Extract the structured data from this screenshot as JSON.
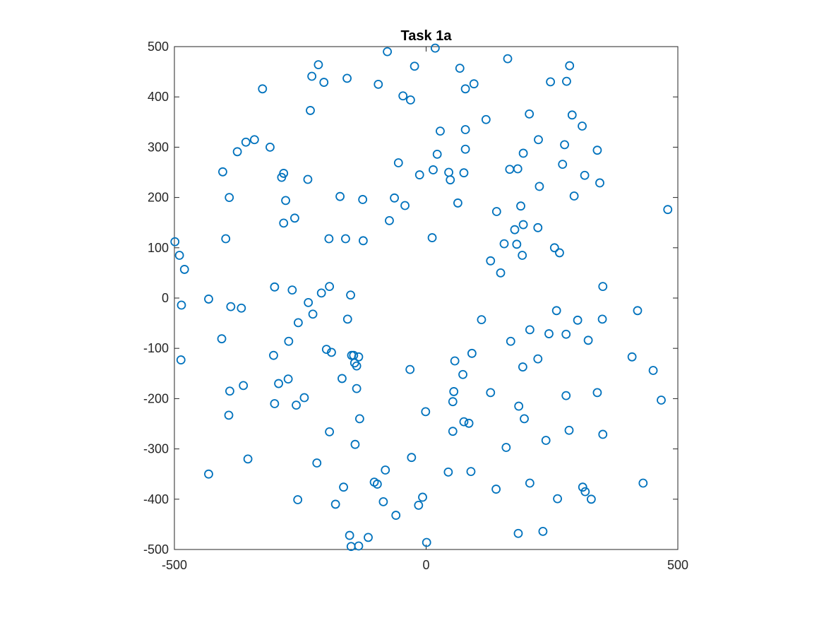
{
  "chart_data": {
    "type": "scatter",
    "title": "Task 1a",
    "xlabel": "",
    "ylabel": "",
    "xlim": [
      -500,
      500
    ],
    "ylim": [
      -500,
      500
    ],
    "xticks": [
      -500,
      0,
      500
    ],
    "yticks": [
      500,
      400,
      300,
      200,
      100,
      0,
      -100,
      -200,
      -300,
      -400,
      -500
    ],
    "grid": false,
    "marker": "circle-open",
    "marker_color": "#0072BD",
    "axis_color": "#262626",
    "points": [
      [
        -77,
        490
      ],
      [
        18,
        497
      ],
      [
        -23,
        461
      ],
      [
        67,
        457
      ],
      [
        162,
        476
      ],
      [
        285,
        462
      ],
      [
        -214,
        464
      ],
      [
        -227,
        441
      ],
      [
        -203,
        429
      ],
      [
        -157,
        437
      ],
      [
        -95,
        425
      ],
      [
        -325,
        416
      ],
      [
        -46,
        402
      ],
      [
        -31,
        394
      ],
      [
        78,
        416
      ],
      [
        95,
        426
      ],
      [
        247,
        430
      ],
      [
        279,
        431
      ],
      [
        -230,
        373
      ],
      [
        119,
        355
      ],
      [
        205,
        366
      ],
      [
        290,
        364
      ],
      [
        310,
        342
      ],
      [
        28,
        332
      ],
      [
        78,
        335
      ],
      [
        -358,
        310
      ],
      [
        -341,
        315
      ],
      [
        -375,
        291
      ],
      [
        -310,
        300
      ],
      [
        22,
        286
      ],
      [
        78,
        296
      ],
      [
        223,
        315
      ],
      [
        275,
        305
      ],
      [
        340,
        294
      ],
      [
        -404,
        251
      ],
      [
        -283,
        248
      ],
      [
        -287,
        240
      ],
      [
        -235,
        236
      ],
      [
        -55,
        269
      ],
      [
        -13,
        245
      ],
      [
        14,
        255
      ],
      [
        45,
        250
      ],
      [
        48,
        235
      ],
      [
        75,
        249
      ],
      [
        166,
        256
      ],
      [
        182,
        257
      ],
      [
        193,
        288
      ],
      [
        271,
        266
      ],
      [
        315,
        244
      ],
      [
        -391,
        200
      ],
      [
        -171,
        202
      ],
      [
        -126,
        196
      ],
      [
        -63,
        199
      ],
      [
        -42,
        184
      ],
      [
        -73,
        154
      ],
      [
        -279,
        194
      ],
      [
        -283,
        149
      ],
      [
        -261,
        159
      ],
      [
        63,
        189
      ],
      [
        225,
        222
      ],
      [
        294,
        203
      ],
      [
        345,
        229
      ],
      [
        480,
        176
      ],
      [
        140,
        172
      ],
      [
        188,
        183
      ],
      [
        193,
        146
      ],
      [
        -499,
        112
      ],
      [
        -490,
        85
      ],
      [
        -480,
        57
      ],
      [
        -398,
        118
      ],
      [
        -193,
        118
      ],
      [
        -160,
        118
      ],
      [
        -125,
        114
      ],
      [
        12,
        120
      ],
      [
        176,
        136
      ],
      [
        222,
        140
      ],
      [
        155,
        108
      ],
      [
        180,
        107
      ],
      [
        191,
        85
      ],
      [
        255,
        100
      ],
      [
        265,
        90
      ],
      [
        128,
        74
      ],
      [
        148,
        50
      ],
      [
        -301,
        22
      ],
      [
        -266,
        16
      ],
      [
        -208,
        10
      ],
      [
        -192,
        23
      ],
      [
        -150,
        6
      ],
      [
        351,
        23
      ],
      [
        -432,
        -2
      ],
      [
        -486,
        -14
      ],
      [
        -388,
        -17
      ],
      [
        -367,
        -20
      ],
      [
        -234,
        -9
      ],
      [
        -225,
        -32
      ],
      [
        -254,
        -49
      ],
      [
        -156,
        -42
      ],
      [
        259,
        -25
      ],
      [
        420,
        -25
      ],
      [
        110,
        -43
      ],
      [
        301,
        -44
      ],
      [
        350,
        -42
      ],
      [
        -406,
        -81
      ],
      [
        -273,
        -86
      ],
      [
        -198,
        -102
      ],
      [
        -188,
        -108
      ],
      [
        -148,
        -114
      ],
      [
        -144,
        -114
      ],
      [
        -134,
        -117
      ],
      [
        -142,
        -129
      ],
      [
        -138,
        -135
      ],
      [
        -303,
        -114
      ],
      [
        -487,
        -123
      ],
      [
        168,
        -86
      ],
      [
        206,
        -63
      ],
      [
        244,
        -71
      ],
      [
        278,
        -72
      ],
      [
        322,
        -84
      ],
      [
        91,
        -110
      ],
      [
        57,
        -125
      ],
      [
        73,
        -152
      ],
      [
        222,
        -121
      ],
      [
        192,
        -137
      ],
      [
        -32,
        -142
      ],
      [
        409,
        -117
      ],
      [
        451,
        -144
      ],
      [
        -167,
        -160
      ],
      [
        -138,
        -180
      ],
      [
        -390,
        -185
      ],
      [
        -363,
        -174
      ],
      [
        -293,
        -170
      ],
      [
        -274,
        -161
      ],
      [
        -242,
        -198
      ],
      [
        -258,
        -213
      ],
      [
        -301,
        -210
      ],
      [
        128,
        -188
      ],
      [
        55,
        -186
      ],
      [
        53,
        -206
      ],
      [
        184,
        -215
      ],
      [
        278,
        -194
      ],
      [
        340,
        -188
      ],
      [
        467,
        -203
      ],
      [
        -392,
        -233
      ],
      [
        -132,
        -240
      ],
      [
        -1,
        -226
      ],
      [
        195,
        -240
      ],
      [
        75,
        -246
      ],
      [
        85,
        -249
      ],
      [
        -192,
        -266
      ],
      [
        53,
        -265
      ],
      [
        -141,
        -291
      ],
      [
        -354,
        -320
      ],
      [
        -217,
        -328
      ],
      [
        -29,
        -317
      ],
      [
        159,
        -297
      ],
      [
        238,
        -283
      ],
      [
        284,
        -263
      ],
      [
        351,
        -271
      ],
      [
        -432,
        -350
      ],
      [
        -164,
        -376
      ],
      [
        -81,
        -342
      ],
      [
        -103,
        -366
      ],
      [
        -97,
        -370
      ],
      [
        44,
        -346
      ],
      [
        89,
        -345
      ],
      [
        139,
        -380
      ],
      [
        206,
        -368
      ],
      [
        311,
        -376
      ],
      [
        316,
        -385
      ],
      [
        328,
        -400
      ],
      [
        431,
        -368
      ],
      [
        -255,
        -401
      ],
      [
        -180,
        -410
      ],
      [
        -85,
        -405
      ],
      [
        -7,
        -396
      ],
      [
        -15,
        -412
      ],
      [
        -60,
        -432
      ],
      [
        -152,
        -472
      ],
      [
        -115,
        -476
      ],
      [
        -149,
        -494
      ],
      [
        -134,
        -493
      ],
      [
        1,
        -486
      ],
      [
        183,
        -468
      ],
      [
        232,
        -464
      ],
      [
        261,
        -399
      ]
    ]
  }
}
